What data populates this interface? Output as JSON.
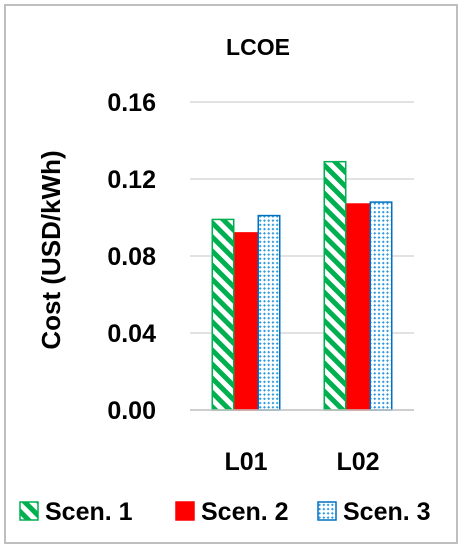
{
  "chart_data": {
    "type": "bar",
    "title": "LCOE",
    "xlabel": "",
    "ylabel": "Cost (USD/kWh)",
    "categories": [
      "L01",
      "L02"
    ],
    "ylim": [
      0,
      0.16
    ],
    "yticks": [
      "0.00",
      "0.04",
      "0.08",
      "0.12",
      "0.16"
    ],
    "grid": true,
    "legend_position": "bottom",
    "series": [
      {
        "name": "Scen. 1",
        "values": [
          0.099,
          0.129
        ],
        "color": "#00b050",
        "fill": "diagonal-stripe"
      },
      {
        "name": "Scen. 2",
        "values": [
          0.092,
          0.107
        ],
        "color": "#ff0000",
        "fill": "solid"
      },
      {
        "name": "Scen. 3",
        "values": [
          0.101,
          0.108
        ],
        "color": "#0070c0",
        "fill": "dotted-hatch"
      }
    ]
  }
}
